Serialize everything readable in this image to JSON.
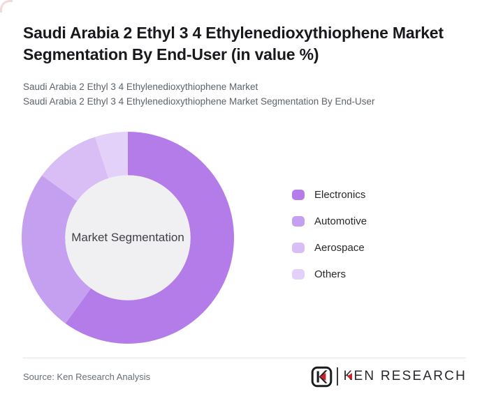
{
  "page": {
    "background": "#ffffff",
    "accent_red": "#c9242b"
  },
  "header": {
    "title": "Saudi Arabia 2 Ethyl 3 4 Ethylenedioxythiophene Market Segmentation By End-User (in value %)",
    "subtitle_lines": [
      "Saudi Arabia 2 Ethyl 3 4 Ethylenedioxythiophene Market",
      "Saudi Arabia 2 Ethyl 3 4 Ethylenedioxythiophene Market Segmentation By End-User"
    ]
  },
  "chart_data": {
    "type": "pie",
    "variant": "donut",
    "title": "Saudi Arabia 2 Ethyl 3 4 Ethylenedioxythiophene Market Segmentation By End-User (in value %)",
    "unit": "value %",
    "center_label": "Market Segmentation",
    "start_angle_deg": 0,
    "direction": "clockwise",
    "inner_radius_ratio": 0.59,
    "inner_color": "#f0eff1",
    "legend_position": "right",
    "segments": [
      {
        "label": "Electronics",
        "value": 60,
        "color": "#b37ce9"
      },
      {
        "label": "Automotive",
        "value": 25,
        "color": "#c59ff0"
      },
      {
        "label": "Aerospace",
        "value": 10,
        "color": "#d9bdf5"
      },
      {
        "label": "Others",
        "value": 5,
        "color": "#e4d1f9"
      }
    ]
  },
  "footer": {
    "source_text": "Source: Ken Research Analysis",
    "logo_brand": "KEN RESEARCH"
  }
}
